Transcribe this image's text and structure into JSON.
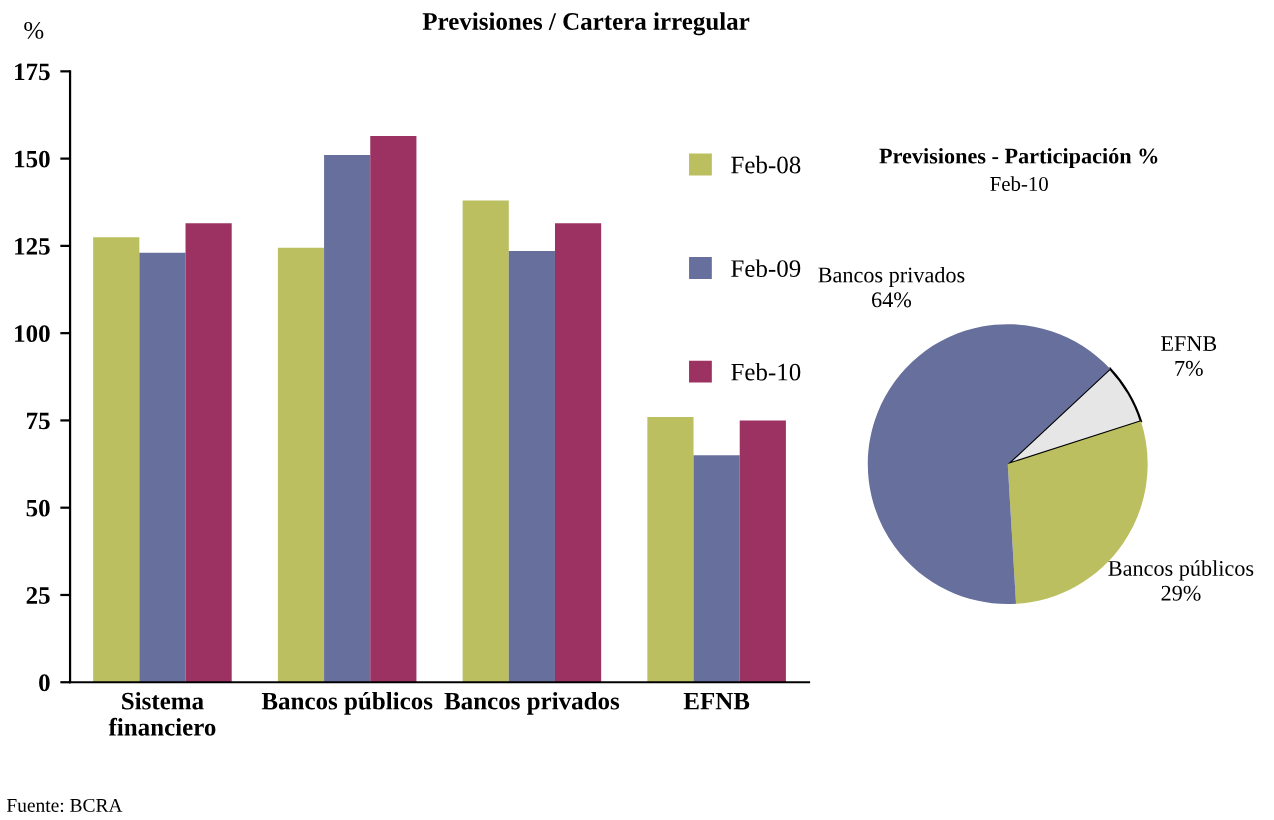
{
  "chart_data": [
    {
      "type": "bar",
      "title": "Previsiones / Cartera irregular",
      "ylabel": "%",
      "categories": [
        "Sistema\nfinanciero",
        "Bancos públicos",
        "Bancos privados",
        "EFNB"
      ],
      "series": [
        {
          "name": "Feb-08",
          "color": "#bcbf60",
          "values": [
            127.5,
            124.5,
            138,
            76
          ]
        },
        {
          "name": "Feb-09",
          "color": "#67709c",
          "values": [
            123,
            151,
            123.5,
            65
          ]
        },
        {
          "name": "Feb-10",
          "color": "#9b3262",
          "values": [
            131.5,
            156.5,
            131.5,
            75
          ]
        }
      ],
      "ylim": [
        0,
        175
      ],
      "yticks": [
        0,
        25,
        50,
        75,
        100,
        125,
        150,
        175
      ],
      "grid": false,
      "legend": "top right",
      "annotations": [
        "Fuente: BCRA"
      ]
    },
    {
      "type": "pie",
      "title": "Previsiones - Participación %",
      "subtitle": "Feb-10",
      "categories": [
        "EFNB",
        "Bancos públicos",
        "Bancos privados"
      ],
      "values": [
        7,
        29,
        64
      ],
      "colors": [
        "#e6e6e6",
        "#bcbf60",
        "#67709c"
      ],
      "value_labels": [
        "7%",
        "29%",
        "64%"
      ]
    }
  ]
}
